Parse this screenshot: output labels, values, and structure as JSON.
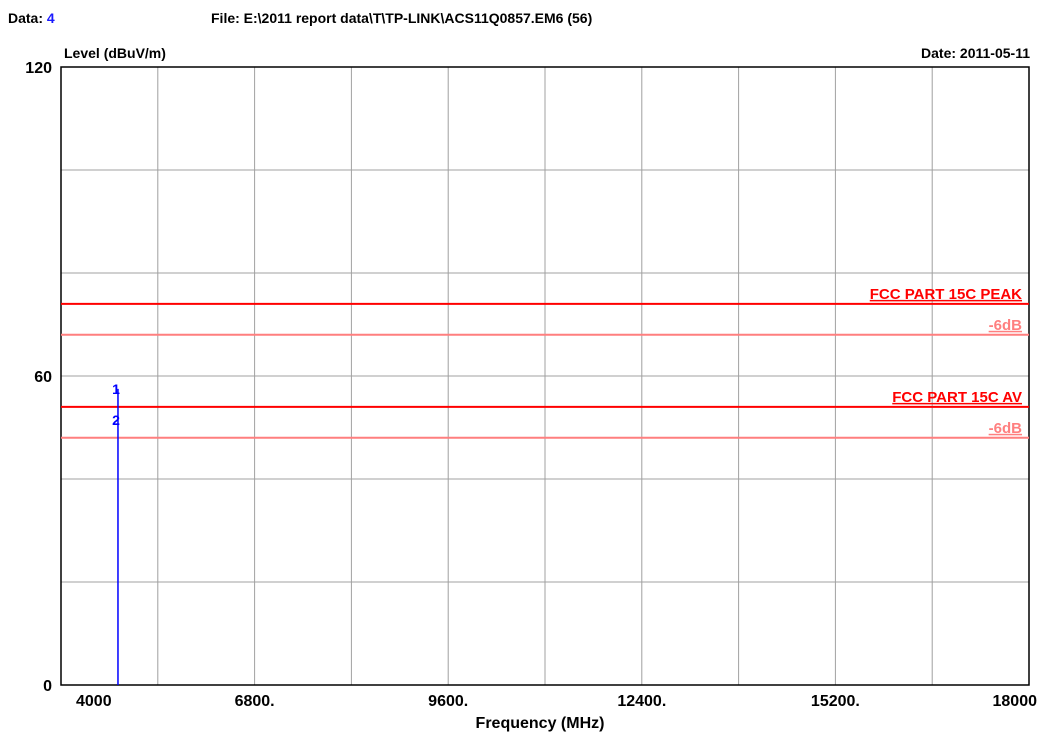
{
  "header": {
    "data_label": "Data:",
    "data_value": "4",
    "file_line": "File: E:\\2011 report data\\T\\TP-LINK\\ACS11Q0857.EM6  (56)",
    "date_line": "Date: 2011-05-11"
  },
  "chart_data": {
    "type": "line",
    "title": "",
    "xlabel": "Frequency (MHz)",
    "ylabel": "Level (dBuV/m)",
    "xlim": [
      4000,
      18000
    ],
    "ylim": [
      0,
      120
    ],
    "grid": true,
    "x_ticks": [
      {
        "value": 4000,
        "label": "4000"
      },
      {
        "value": 6800,
        "label": "6800."
      },
      {
        "value": 9600,
        "label": "9600."
      },
      {
        "value": 12400,
        "label": "12400."
      },
      {
        "value": 15200,
        "label": "15200."
      },
      {
        "value": 18000,
        "label": "18000"
      }
    ],
    "y_ticks": [
      {
        "value": 0,
        "label": "0"
      },
      {
        "value": 60,
        "label": "60"
      },
      {
        "value": 120,
        "label": "120"
      }
    ],
    "x_gridlines": [
      4000,
      5400,
      6800,
      8200,
      9600,
      11000,
      12400,
      13800,
      15200,
      16600,
      18000
    ],
    "y_gridlines": [
      0,
      20,
      40,
      60,
      80,
      100,
      120
    ],
    "limit_lines": [
      {
        "name": "FCC PART 15C  PEAK",
        "value": 74,
        "color": "#ff0000"
      },
      {
        "name": "-6dB",
        "value": 68,
        "color": "#ff7f7f"
      },
      {
        "name": "FCC PART 15C AV",
        "value": 54,
        "color": "#ff0000"
      },
      {
        "name": "-6dB",
        "value": 48,
        "color": "#ff7f7f"
      }
    ],
    "trace": {
      "color": "#0000ff",
      "points": [
        {
          "x": 4824,
          "y": 0
        },
        {
          "x": 4824,
          "y": 57.5
        }
      ]
    },
    "markers": [
      {
        "label": "1",
        "x": 4824,
        "y": 57.5
      },
      {
        "label": "2",
        "x": 4824,
        "y": 51.5
      }
    ]
  }
}
